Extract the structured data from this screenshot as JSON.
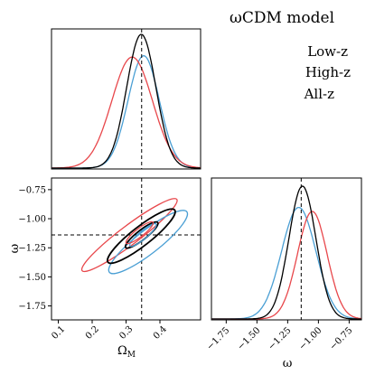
{
  "title": "ωCDM model",
  "legend": {
    "placement": "top-right",
    "items": [
      {
        "label": "Low-z",
        "color": "#4a9fd4"
      },
      {
        "label": "High-z",
        "color": "#e8474b"
      },
      {
        "label": "All-z",
        "color": "#000000"
      }
    ]
  },
  "chart_data": [
    {
      "type": "line",
      "panel": "marginal-omega-m",
      "xlim": [
        0.08,
        0.52
      ],
      "ref_x": 0.346,
      "series": [
        {
          "name": "Low-z",
          "color": "#4a9fd4",
          "mu": 0.352,
          "sigma": 0.046,
          "peak": 0.84
        },
        {
          "name": "High-z",
          "color": "#e8474b",
          "mu": 0.318,
          "sigma": 0.06,
          "peak": 0.83
        },
        {
          "name": "All-z",
          "color": "#000000",
          "mu": 0.345,
          "sigma": 0.043,
          "peak": 1.0
        }
      ]
    },
    {
      "type": "scatter",
      "panel": "joint-omega-m-w",
      "xlabel": "Ω_M",
      "ylabel": "ω",
      "xlim": [
        0.08,
        0.52
      ],
      "ylim": [
        -1.87,
        -0.65
      ],
      "xticks": [
        "0.1",
        "0.2",
        "0.3",
        "0.4"
      ],
      "xtick_values": [
        0.1,
        0.2,
        0.3,
        0.4
      ],
      "yticks": [
        "−0.75",
        "−1.00",
        "−1.25",
        "−1.50",
        "−1.75"
      ],
      "ytick_values": [
        -0.75,
        -1.0,
        -1.25,
        -1.5,
        -1.75
      ],
      "ref_x": 0.346,
      "ref_y": -1.14,
      "contours": [
        {
          "name": "High-z",
          "color": "#e8474b",
          "cx": 0.31,
          "cy": -1.14,
          "a": 0.175,
          "b": 0.028,
          "angle_deg": -37
        },
        {
          "name": "Low-z",
          "color": "#4a9fd4",
          "cx": 0.365,
          "cy": -1.2,
          "a": 0.145,
          "b": 0.034,
          "angle_deg": -38
        },
        {
          "name": "All-z",
          "color": "#000000",
          "cx": 0.345,
          "cy": -1.15,
          "a": 0.125,
          "b": 0.028,
          "angle_deg": -38
        },
        {
          "name": "All-z",
          "color": "#000000",
          "cx": 0.346,
          "cy": -1.14,
          "a": 0.06,
          "b": 0.014,
          "angle_deg": -38
        },
        {
          "name": "Low-z",
          "color": "#4a9fd4",
          "cx": 0.35,
          "cy": -1.14,
          "a": 0.05,
          "b": 0.012,
          "angle_deg": -40
        },
        {
          "name": "High-z",
          "color": "#e8474b",
          "cx": 0.34,
          "cy": -1.12,
          "a": 0.05,
          "b": 0.012,
          "angle_deg": -38
        }
      ]
    },
    {
      "type": "line",
      "panel": "marginal-w",
      "xlabel": "ω",
      "xlim": [
        -1.87,
        -0.65
      ],
      "xticks": [
        "−1.75",
        "−1.50",
        "−1.25",
        "−1.00",
        "−0.75"
      ],
      "xtick_values": [
        -1.75,
        -1.5,
        -1.25,
        -1.0,
        -0.75
      ],
      "ref_x": -1.14,
      "series": [
        {
          "name": "Low-z",
          "color": "#4a9fd4",
          "mu": -1.16,
          "sigma": 0.14,
          "peak": 0.84
        },
        {
          "name": "High-z",
          "color": "#e8474b",
          "mu": -1.05,
          "sigma": 0.12,
          "peak": 0.81
        },
        {
          "name": "All-z",
          "color": "#000000",
          "mu": -1.13,
          "sigma": 0.11,
          "peak": 1.0
        }
      ]
    }
  ]
}
